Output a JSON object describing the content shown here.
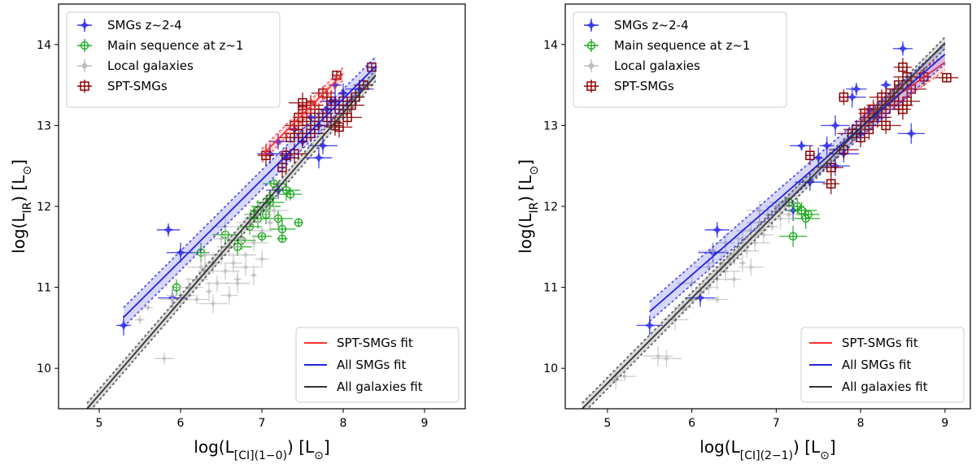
{
  "chart_data": [
    {
      "type": "scatter",
      "xlabel": {
        "main": "log(L",
        "sub": "[CI](1−0)",
        "tail": ") [L",
        "sun": "⊙",
        "end": "]"
      },
      "ylabel": {
        "main": "log(L",
        "sub": "IR",
        "tail": ") [L",
        "sun": "⊙",
        "end": "]"
      },
      "xlim": [
        4.5,
        9.5
      ],
      "ylim": [
        9.5,
        14.5
      ],
      "xticks": [
        "5",
        "6",
        "7",
        "8",
        "9"
      ],
      "yticks": [
        "10",
        "11",
        "12",
        "13",
        "14"
      ],
      "legend_top": [
        "SMGs z~2-4",
        "Main sequence at z~1",
        "Local galaxies",
        "SPT-SMGs"
      ],
      "legend_bottom": [
        "SPT-SMGs fit",
        "All SMGs fit",
        "All galaxies fit"
      ],
      "series": [
        {
          "name": "SMGs z~2-4",
          "color": "#3333ee",
          "marker": "star",
          "points": [
            [
              5.3,
              10.53
            ],
            [
              5.85,
              11.71
            ],
            [
              6.0,
              11.43
            ],
            [
              5.9,
              10.87
            ],
            [
              7.1,
              12.65
            ],
            [
              7.2,
              12.8
            ],
            [
              7.3,
              12.6
            ],
            [
              7.5,
              12.8
            ],
            [
              7.6,
              13.1
            ],
            [
              7.7,
              12.6
            ],
            [
              7.75,
              12.75
            ],
            [
              7.8,
              13.2
            ],
            [
              7.85,
              13.3
            ],
            [
              7.9,
              13.5
            ],
            [
              8.0,
              13.4
            ],
            [
              7.4,
              12.95
            ],
            [
              7.2,
              12.2
            ],
            [
              7.7,
              13.0
            ],
            [
              8.2,
              13.45
            ],
            [
              7.9,
              13.3
            ]
          ]
        },
        {
          "name": "Main sequence at z~1",
          "color": "#22aa22",
          "marker": "circle",
          "points": [
            [
              5.95,
              11.0
            ],
            [
              6.25,
              11.43
            ],
            [
              6.55,
              11.65
            ],
            [
              6.7,
              11.5
            ],
            [
              6.75,
              11.58
            ],
            [
              6.85,
              11.75
            ],
            [
              6.95,
              11.95
            ],
            [
              7.05,
              11.9
            ],
            [
              7.1,
              12.1
            ],
            [
              7.15,
              12.28
            ],
            [
              7.3,
              12.2
            ],
            [
              7.2,
              11.85
            ],
            [
              7.25,
              11.72
            ],
            [
              7.0,
              11.63
            ],
            [
              7.25,
              11.6
            ],
            [
              7.45,
              11.8
            ],
            [
              6.9,
              11.9
            ],
            [
              6.95,
              11.85
            ],
            [
              7.05,
              12.0
            ],
            [
              7.1,
              12.05
            ],
            [
              7.35,
              12.15
            ]
          ]
        },
        {
          "name": "Local galaxies",
          "color": "#bdbdbd",
          "marker": "diamond",
          "points": [
            [
              5.5,
              10.6
            ],
            [
              5.6,
              10.75
            ],
            [
              5.8,
              10.12
            ],
            [
              5.9,
              10.85
            ],
            [
              6.0,
              10.9
            ],
            [
              6.1,
              11.0
            ],
            [
              6.2,
              11.1
            ],
            [
              6.3,
              11.2
            ],
            [
              6.35,
              10.95
            ],
            [
              6.4,
              11.3
            ],
            [
              6.45,
              11.05
            ],
            [
              6.5,
              11.4
            ],
            [
              6.55,
              11.2
            ],
            [
              6.6,
              11.5
            ],
            [
              6.65,
              11.3
            ],
            [
              6.7,
              11.1
            ],
            [
              6.75,
              11.6
            ],
            [
              6.8,
              11.4
            ],
            [
              6.85,
              11.8
            ],
            [
              6.9,
              11.55
            ],
            [
              6.95,
              11.9
            ],
            [
              7.0,
              11.7
            ],
            [
              7.05,
              12.0
            ],
            [
              7.1,
              11.8
            ],
            [
              6.6,
              10.9
            ],
            [
              6.7,
              11.05
            ],
            [
              6.8,
              11.25
            ],
            [
              6.4,
              10.8
            ],
            [
              6.3,
              11.4
            ],
            [
              6.5,
              11.6
            ],
            [
              6.9,
              11.15
            ],
            [
              7.0,
              11.35
            ],
            [
              6.2,
              10.85
            ],
            [
              6.55,
              11.75
            ],
            [
              7.15,
              11.95
            ],
            [
              6.25,
              11.25
            ]
          ]
        },
        {
          "name": "SPT-SMGs",
          "color": "#8b0000",
          "marker": "square",
          "points": [
            [
              7.05,
              12.63
            ],
            [
              7.25,
              12.48
            ],
            [
              7.3,
              12.63
            ],
            [
              7.35,
              12.85
            ],
            [
              7.4,
              12.65
            ],
            [
              7.45,
              12.9
            ],
            [
              7.5,
              12.85
            ],
            [
              7.4,
              13.0
            ],
            [
              7.45,
              13.1
            ],
            [
              7.5,
              13.2
            ],
            [
              7.55,
              13.05
            ],
            [
              7.6,
              13.25
            ],
            [
              7.65,
              13.0
            ],
            [
              7.7,
              13.15
            ],
            [
              7.75,
              13.4
            ],
            [
              7.8,
              13.1
            ],
            [
              7.85,
              13.3
            ],
            [
              7.9,
              13.0
            ],
            [
              7.95,
              13.2
            ],
            [
              8.0,
              13.3
            ],
            [
              8.05,
              13.1
            ],
            [
              8.1,
              13.25
            ],
            [
              8.15,
              13.35
            ],
            [
              7.92,
              13.62
            ],
            [
              8.35,
              13.72
            ],
            [
              8.25,
              13.5
            ],
            [
              7.95,
              12.98
            ],
            [
              7.6,
              12.9
            ],
            [
              7.5,
              13.28
            ]
          ]
        }
      ],
      "fits": [
        {
          "name": "SPT-SMGs fit",
          "color": "#ff3333",
          "x": [
            7.0,
            8.0
          ],
          "y": [
            12.63,
            13.64
          ],
          "band": 0.08
        },
        {
          "name": "All SMGs fit",
          "color": "#2222dd",
          "x": [
            5.3,
            8.4
          ],
          "y": [
            10.63,
            13.73
          ],
          "band": 0.12
        },
        {
          "name": "All galaxies fit",
          "color": "#333333",
          "x": [
            4.85,
            8.4
          ],
          "y": [
            9.5,
            13.62
          ],
          "band": 0.07
        }
      ]
    },
    {
      "type": "scatter",
      "xlabel": {
        "main": "log(L",
        "sub": "[CI](2−1)",
        "tail": ") [L",
        "sun": "⊙",
        "end": "]"
      },
      "ylabel": {
        "main": "log(L",
        "sub": "IR",
        "tail": ") [L",
        "sun": "⊙",
        "end": "]"
      },
      "xlim": [
        4.5,
        9.3
      ],
      "ylim": [
        9.5,
        14.5
      ],
      "xticks": [
        "5",
        "6",
        "7",
        "8",
        "9"
      ],
      "yticks": [
        "10",
        "11",
        "12",
        "13",
        "14"
      ],
      "legend_top": [
        "SMGs z~2-4",
        "Main sequence at z~1",
        "Local galaxies",
        "SPT-SMGs"
      ],
      "legend_bottom": [
        "SPT-SMGs fit",
        "All SMGs fit",
        "All galaxies fit"
      ],
      "series": [
        {
          "name": "SMGs z~2-4",
          "color": "#3333ee",
          "marker": "star",
          "points": [
            [
              5.5,
              10.53
            ],
            [
              6.1,
              10.87
            ],
            [
              6.25,
              11.43
            ],
            [
              6.3,
              11.71
            ],
            [
              7.2,
              11.95
            ],
            [
              7.5,
              12.6
            ],
            [
              7.6,
              12.75
            ],
            [
              7.3,
              12.75
            ],
            [
              7.7,
              13.0
            ],
            [
              7.8,
              12.65
            ],
            [
              7.9,
              13.35
            ],
            [
              7.95,
              13.45
            ],
            [
              8.1,
              13.2
            ],
            [
              8.3,
              13.5
            ],
            [
              8.5,
              13.95
            ],
            [
              8.6,
              12.9
            ],
            [
              7.4,
              12.3
            ],
            [
              7.7,
              12.5
            ],
            [
              8.2,
              13.1
            ],
            [
              8.0,
              12.9
            ]
          ]
        },
        {
          "name": "Main sequence at z~1",
          "color": "#22aa22",
          "marker": "circle",
          "points": [
            [
              7.15,
              12.05
            ],
            [
              7.2,
              11.63
            ],
            [
              7.3,
              11.95
            ],
            [
              7.35,
              11.85
            ],
            [
              7.38,
              11.9
            ],
            [
              7.25,
              12.0
            ]
          ]
        },
        {
          "name": "Local galaxies",
          "color": "#bdbdbd",
          "marker": "diamond",
          "points": [
            [
              5.1,
              9.85
            ],
            [
              5.2,
              9.9
            ],
            [
              5.6,
              10.15
            ],
            [
              5.7,
              10.12
            ],
            [
              5.8,
              10.6
            ],
            [
              5.9,
              10.75
            ],
            [
              6.0,
              10.85
            ],
            [
              6.1,
              10.95
            ],
            [
              6.2,
              11.0
            ],
            [
              6.3,
              11.1
            ],
            [
              6.35,
              11.3
            ],
            [
              6.4,
              11.2
            ],
            [
              6.45,
              11.35
            ],
            [
              6.5,
              11.4
            ],
            [
              6.55,
              11.5
            ],
            [
              6.6,
              11.6
            ],
            [
              6.65,
              11.45
            ],
            [
              6.7,
              11.7
            ],
            [
              6.75,
              11.55
            ],
            [
              6.8,
              11.8
            ],
            [
              6.85,
              11.65
            ],
            [
              6.9,
              11.9
            ],
            [
              6.95,
              11.75
            ],
            [
              7.0,
              12.0
            ],
            [
              7.05,
              11.85
            ],
            [
              7.1,
              12.05
            ],
            [
              6.2,
              11.25
            ],
            [
              6.3,
              10.85
            ],
            [
              6.5,
              11.1
            ],
            [
              6.6,
              11.3
            ],
            [
              6.4,
              11.55
            ],
            [
              6.7,
              11.25
            ],
            [
              6.0,
              11.05
            ],
            [
              6.25,
              11.45
            ],
            [
              6.8,
              11.95
            ],
            [
              7.15,
              11.9
            ]
          ]
        },
        {
          "name": "SPT-SMGs",
          "color": "#8b0000",
          "marker": "square",
          "points": [
            [
              7.4,
              12.63
            ],
            [
              7.65,
              12.28
            ],
            [
              7.65,
              12.48
            ],
            [
              7.8,
              12.7
            ],
            [
              7.9,
              12.9
            ],
            [
              7.95,
              12.95
            ],
            [
              8.0,
              12.85
            ],
            [
              7.8,
              13.35
            ],
            [
              8.05,
              13.15
            ],
            [
              8.1,
              13.0
            ],
            [
              8.2,
              13.1
            ],
            [
              8.25,
              13.25
            ],
            [
              8.3,
              13.2
            ],
            [
              8.35,
              13.4
            ],
            [
              8.4,
              13.3
            ],
            [
              8.45,
              13.5
            ],
            [
              8.5,
              13.72
            ],
            [
              8.55,
              13.3
            ],
            [
              8.6,
              13.45
            ],
            [
              8.15,
              13.2
            ],
            [
              8.25,
              13.35
            ],
            [
              8.5,
              13.2
            ],
            [
              8.1,
              12.95
            ],
            [
              8.75,
              13.6
            ],
            [
              9.02,
              13.59
            ],
            [
              8.45,
              13.25
            ],
            [
              8.3,
              13.0
            ],
            [
              8.55,
              13.6
            ],
            [
              8.05,
              13.05
            ]
          ]
        }
      ],
      "fits": [
        {
          "name": "SPT-SMGs fit",
          "color": "#ff3333",
          "x": [
            8.0,
            9.0
          ],
          "y": [
            13.05,
            13.78
          ],
          "band": 0.1
        },
        {
          "name": "All SMGs fit",
          "color": "#2222dd",
          "x": [
            5.5,
            9.0
          ],
          "y": [
            10.7,
            13.88
          ],
          "band": 0.12
        },
        {
          "name": "All galaxies fit",
          "color": "#333333",
          "x": [
            4.7,
            9.0
          ],
          "y": [
            9.5,
            14.02
          ],
          "band": 0.07
        }
      ]
    }
  ]
}
